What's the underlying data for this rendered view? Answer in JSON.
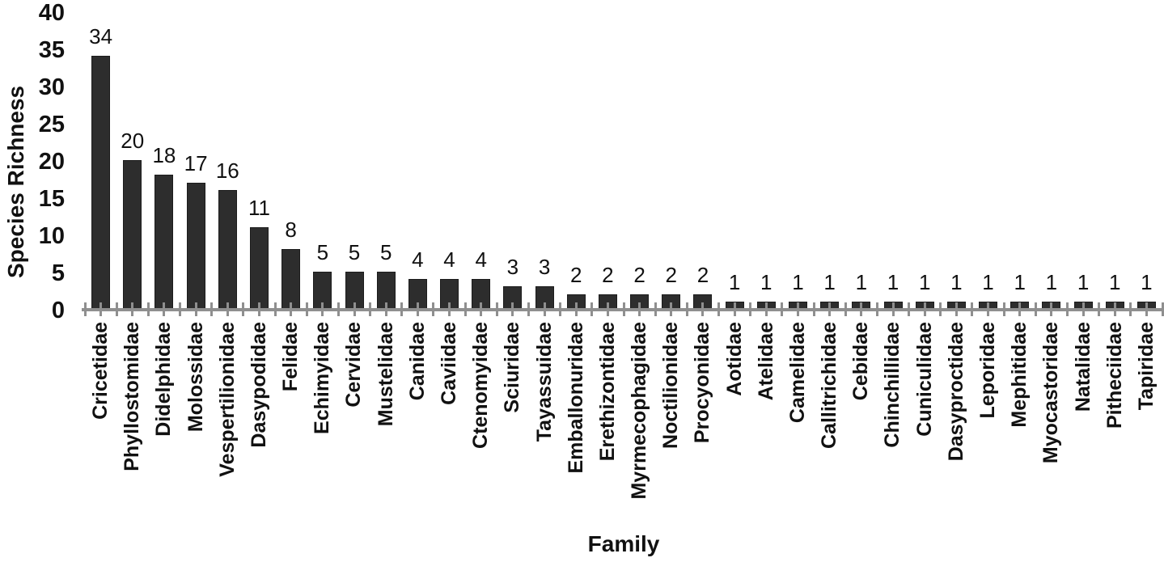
{
  "chart_data": {
    "type": "bar",
    "title": "",
    "xlabel": "Family",
    "ylabel": "Species Richness",
    "ylim": [
      0,
      40
    ],
    "ytick_step": 5,
    "yticks": [
      0,
      5,
      10,
      15,
      20,
      25,
      30,
      35,
      40
    ],
    "grid": false,
    "legend": "none",
    "data_labels": true,
    "bar_color": "#2d2d2d",
    "axis_color": "#8f8f8f",
    "categories": [
      "Cricetidae",
      "Phyllostomidae",
      "Didelphidae",
      "Molossidae",
      "Vespertilionidae",
      "Dasypodidae",
      "Felidae",
      "Echimyidae",
      "Cervidae",
      "Mustelidae",
      "Canidae",
      "Caviidae",
      "Ctenomyidae",
      "Sciuridae",
      "Tayassuidae",
      "Emballonuridae",
      "Erethizontidae",
      "Myrmecophagidae",
      "Noctilionidae",
      "Procyonidae",
      "Aotidae",
      "Atelidae",
      "Camelidae",
      "Callitrichidae",
      "Cebidae",
      "Chinchillidae",
      "Cuniculidae",
      "Dasyproctidae",
      "Leporidae",
      "Mephitidae",
      "Myocastoridae",
      "Natalidae",
      "Pitheciidae",
      "Tapiridae"
    ],
    "values": [
      34,
      20,
      18,
      17,
      16,
      11,
      8,
      5,
      5,
      5,
      4,
      4,
      4,
      3,
      3,
      2,
      2,
      2,
      2,
      2,
      1,
      1,
      1,
      1,
      1,
      1,
      1,
      1,
      1,
      1,
      1,
      1,
      1,
      1
    ]
  }
}
